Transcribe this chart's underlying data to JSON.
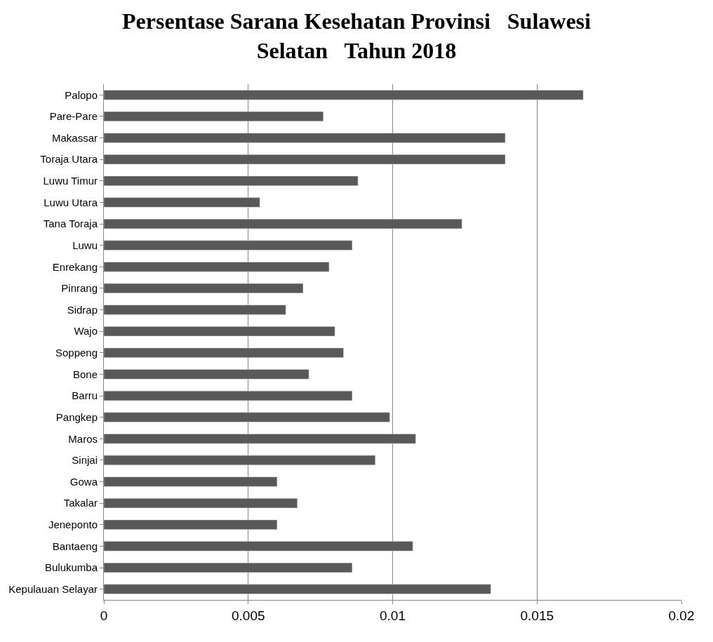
{
  "chart_data": {
    "type": "bar",
    "orientation": "horizontal",
    "title": "Persentase Sarana Kesehatan Provinsi   Sulawesi\nSelatan   Tahun 2018",
    "categories": [
      "Palopo",
      "Pare-Pare",
      "Makassar",
      "Toraja Utara",
      "Luwu Timur",
      "Luwu Utara",
      "Tana Toraja",
      "Luwu",
      "Enrekang",
      "Pinrang",
      "Sidrap",
      "Wajo",
      "Soppeng",
      "Bone",
      "Barru",
      "Pangkep",
      "Maros",
      "Sinjai",
      "Gowa",
      "Takalar",
      "Jeneponto",
      "Bantaeng",
      "Bulukumba",
      "Kepulauan Selayar"
    ],
    "values": [
      0.0166,
      0.0076,
      0.0139,
      0.0139,
      0.0088,
      0.0054,
      0.0124,
      0.0086,
      0.0078,
      0.0069,
      0.0063,
      0.008,
      0.0083,
      0.0071,
      0.0086,
      0.0099,
      0.0108,
      0.0094,
      0.006,
      0.0067,
      0.006,
      0.0107,
      0.0086,
      0.0134
    ],
    "color": "#595959",
    "xlim": [
      0,
      0.02
    ],
    "xticks": [
      0,
      0.005,
      0.01,
      0.015,
      0.02
    ],
    "grid": "x"
  }
}
